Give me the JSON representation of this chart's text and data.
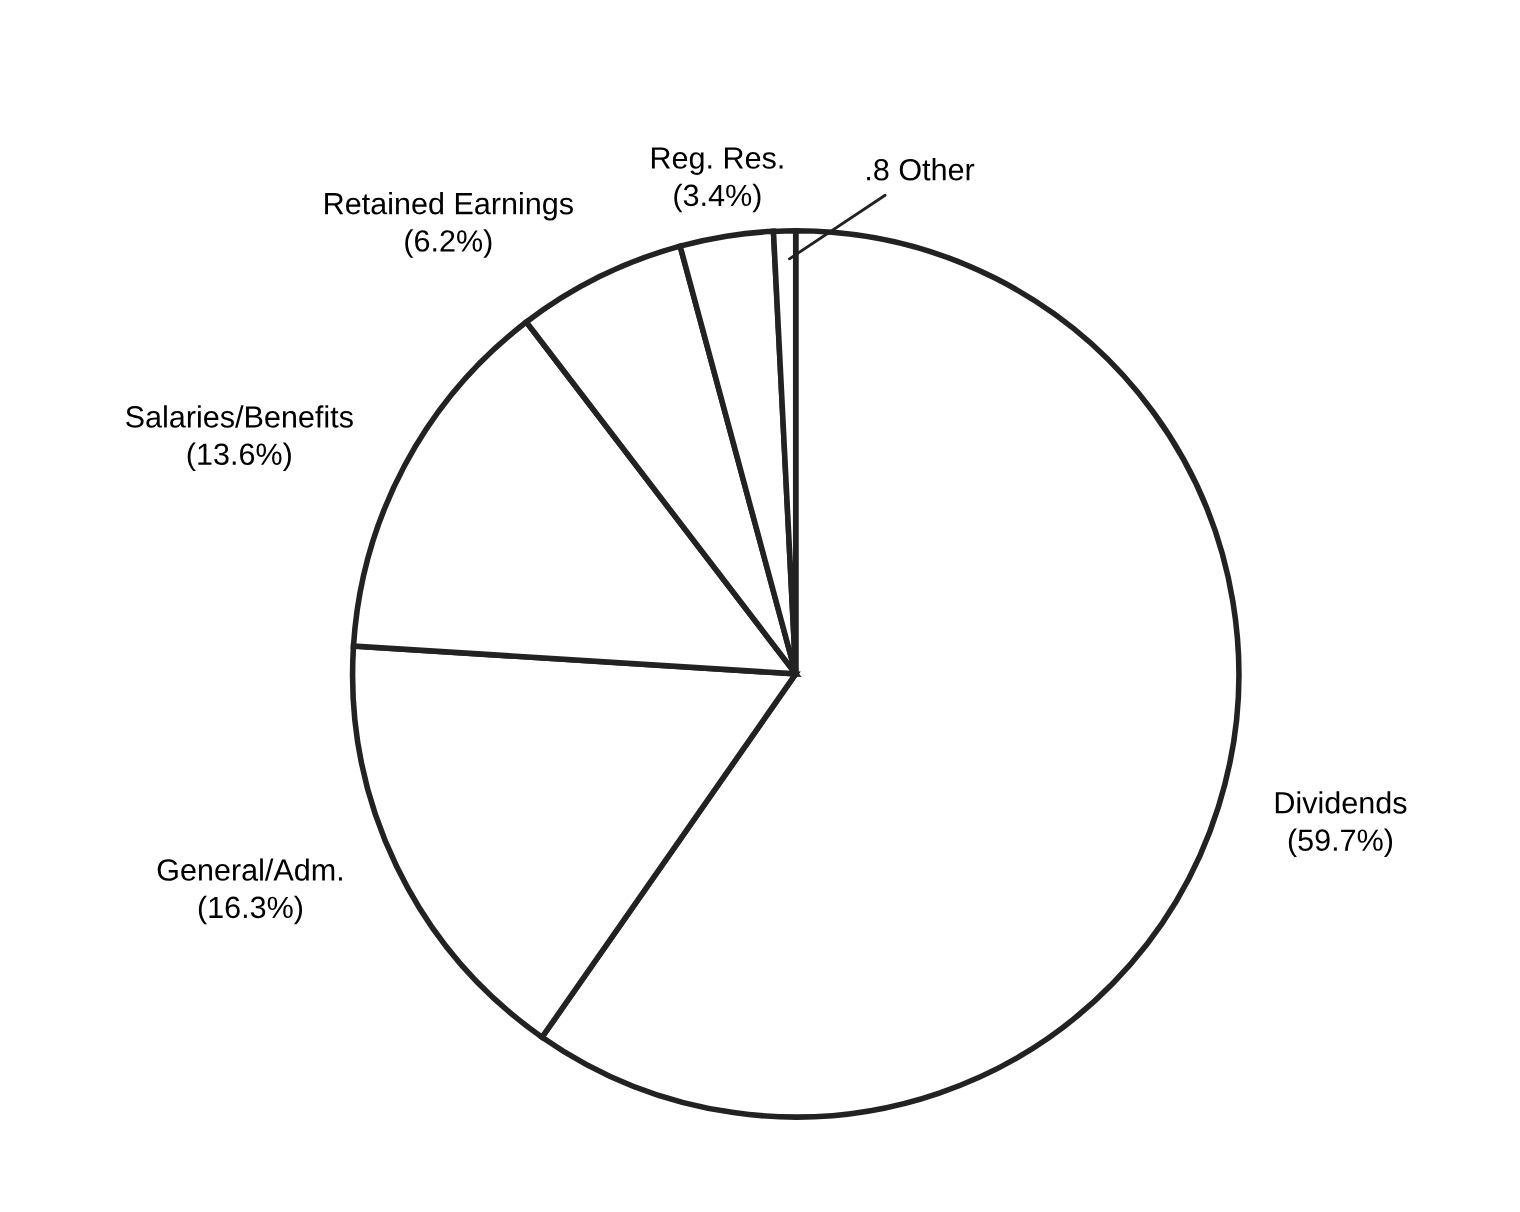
{
  "chart_data": {
    "type": "pie",
    "categories": [
      "Dividends",
      "General/Adm.",
      "Salaries/Benefits",
      "Retained Earnings",
      "Reg. Res.",
      ".8 Other"
    ],
    "values": [
      59.7,
      16.3,
      13.6,
      6.2,
      3.4,
      0.8
    ],
    "value_labels": [
      "(59.7%)",
      "(16.3%)",
      "(13.6%)",
      "(6.2%)",
      "(3.4%)",
      null
    ],
    "colors": [
      "#ffffff",
      "#ffffff",
      "#ffffff",
      "#ffffff",
      "#ffffff",
      "#ffffff"
    ]
  }
}
